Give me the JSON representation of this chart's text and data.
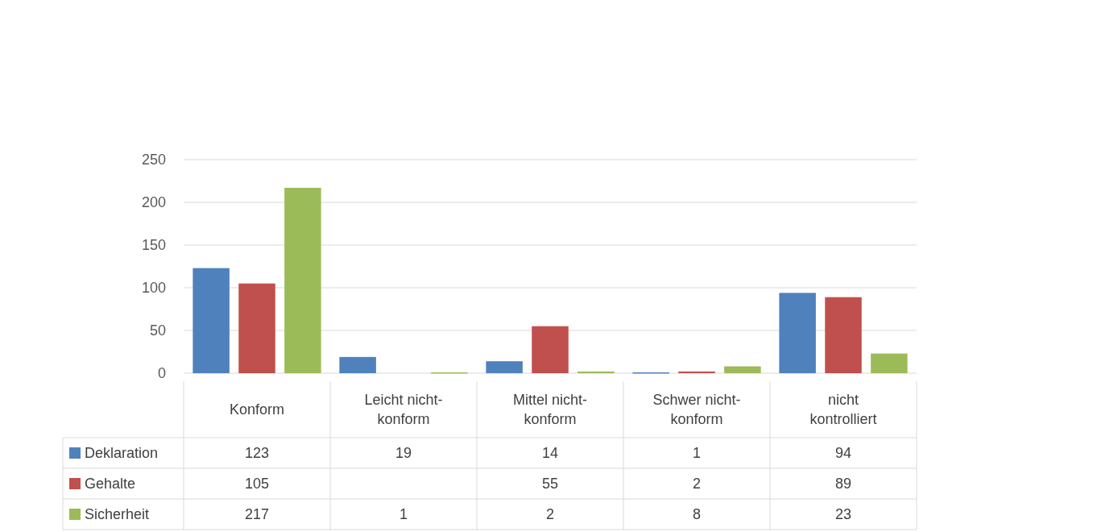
{
  "chart_data": {
    "type": "bar",
    "categories": [
      "Konform",
      "Leicht nicht-konform",
      "Mittel nicht-konform",
      "Schwer nicht-konform",
      "nicht kontrolliert"
    ],
    "series": [
      {
        "name": "Deklaration",
        "color": "#4f81bd",
        "values": [
          123,
          19,
          14,
          1,
          94
        ]
      },
      {
        "name": "Gehalte",
        "color": "#c0504d",
        "values": [
          105,
          null,
          55,
          2,
          89
        ]
      },
      {
        "name": "Sicherheit",
        "color": "#9bbb59",
        "values": [
          217,
          1,
          2,
          8,
          23
        ]
      }
    ],
    "ylim": [
      0,
      250
    ],
    "yticks": [
      0,
      50,
      100,
      150,
      200,
      250
    ],
    "grid": "y",
    "legend": "bottom",
    "data_labels": true
  }
}
